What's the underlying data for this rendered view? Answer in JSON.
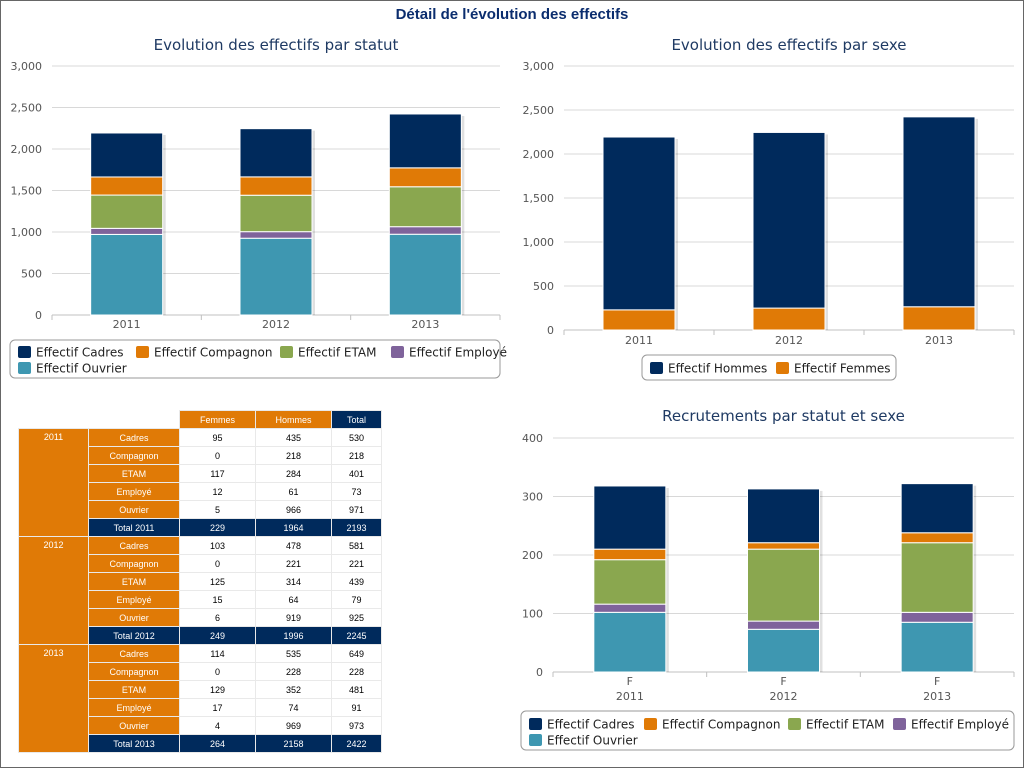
{
  "page": {
    "title": "Détail de l'évolution des effectifs"
  },
  "colors": {
    "Cadres": "#002a5c",
    "Compagnon": "#e07a06",
    "ETAM": "#8aa74f",
    "Employe": "#7f639b",
    "Ouvrier": "#3e97b1",
    "Hommes": "#002a5c",
    "Femmes": "#e07a06",
    "header_orange": "#e07a06",
    "header_navy": "#002a5c"
  },
  "chart_data": [
    {
      "id": "status",
      "type": "bar",
      "stacked": true,
      "title": "Evolution des effectifs par statut",
      "categories": [
        "2011",
        "2012",
        "2013"
      ],
      "ylim": [
        0,
        3000
      ],
      "yticks": [
        0,
        500,
        1000,
        1500,
        2000,
        2500,
        3000
      ],
      "ytick_labels": [
        "0",
        "500",
        "1,000",
        "1,500",
        "2,000",
        "2,500",
        "3,000"
      ],
      "grid": true,
      "legend": "bottom",
      "series": [
        {
          "name": "Effectif Cadres",
          "key": "Cadres",
          "values": [
            530,
            581,
            649
          ]
        },
        {
          "name": "Effectif Compagnon",
          "key": "Compagnon",
          "values": [
            218,
            221,
            228
          ]
        },
        {
          "name": "Effectif ETAM",
          "key": "ETAM",
          "values": [
            401,
            439,
            481
          ]
        },
        {
          "name": "Effectif Employé",
          "key": "Employe",
          "values": [
            73,
            79,
            91
          ]
        },
        {
          "name": "Effectif Ouvrier",
          "key": "Ouvrier",
          "values": [
            971,
            925,
            973
          ]
        }
      ]
    },
    {
      "id": "sex",
      "type": "bar",
      "stacked": true,
      "title": "Evolution des effectifs par sexe",
      "categories": [
        "2011",
        "2012",
        "2013"
      ],
      "ylim": [
        0,
        3000
      ],
      "yticks": [
        0,
        500,
        1000,
        1500,
        2000,
        2500,
        3000
      ],
      "ytick_labels": [
        "0",
        "500",
        "1,000",
        "1,500",
        "2,000",
        "2,500",
        "3,000"
      ],
      "grid": true,
      "legend": "bottom",
      "series": [
        {
          "name": "Effectif Hommes",
          "key": "Hommes",
          "values": [
            1964,
            1996,
            2158
          ]
        },
        {
          "name": "Effectif Femmes",
          "key": "Femmes",
          "values": [
            229,
            249,
            264
          ]
        }
      ]
    },
    {
      "id": "recruit",
      "type": "bar",
      "stacked": true,
      "title": "Recrutements par statut et sexe",
      "categories": [
        "2011",
        "2012",
        "2013"
      ],
      "subcategories": [
        "F",
        "F",
        "F"
      ],
      "ylim": [
        0,
        400
      ],
      "yticks": [
        0,
        100,
        200,
        300,
        400
      ],
      "ytick_labels": [
        "0",
        "100",
        "200",
        "300",
        "400"
      ],
      "grid": true,
      "legend": "bottom",
      "series": [
        {
          "name": "Effectif Cadres",
          "key": "Cadres",
          "values": [
            108,
            92,
            84
          ]
        },
        {
          "name": "Effectif Compagnon",
          "key": "Compagnon",
          "values": [
            18,
            11,
            17
          ]
        },
        {
          "name": "Effectif ETAM",
          "key": "ETAM",
          "values": [
            76,
            123,
            119
          ]
        },
        {
          "name": "Effectif Employé",
          "key": "Employe",
          "values": [
            14,
            14,
            17
          ]
        },
        {
          "name": "Effectif Ouvrier",
          "key": "Ouvrier",
          "values": [
            102,
            73,
            85
          ]
        }
      ]
    },
    {
      "id": "table",
      "type": "table",
      "columns": [
        "Femmes",
        "Hommes",
        "Total"
      ],
      "groups": [
        {
          "year": "2011",
          "rows": [
            {
              "label": "Cadres",
              "values": [
                "95",
                "435",
                "530"
              ]
            },
            {
              "label": "Compagnon",
              "values": [
                "0",
                "218",
                "218"
              ]
            },
            {
              "label": "ETAM",
              "values": [
                "117",
                "284",
                "401"
              ]
            },
            {
              "label": "Employé",
              "values": [
                "12",
                "61",
                "73"
              ]
            },
            {
              "label": "Ouvrier",
              "values": [
                "5",
                "966",
                "971"
              ]
            }
          ],
          "total": {
            "label": "Total 2011",
            "values": [
              "229",
              "1964",
              "2193"
            ]
          }
        },
        {
          "year": "2012",
          "rows": [
            {
              "label": "Cadres",
              "values": [
                "103",
                "478",
                "581"
              ]
            },
            {
              "label": "Compagnon",
              "values": [
                "0",
                "221",
                "221"
              ]
            },
            {
              "label": "ETAM",
              "values": [
                "125",
                "314",
                "439"
              ]
            },
            {
              "label": "Employé",
              "values": [
                "15",
                "64",
                "79"
              ]
            },
            {
              "label": "Ouvrier",
              "values": [
                "6",
                "919",
                "925"
              ]
            }
          ],
          "total": {
            "label": "Total 2012",
            "values": [
              "249",
              "1996",
              "2245"
            ]
          }
        },
        {
          "year": "2013",
          "rows": [
            {
              "label": "Cadres",
              "values": [
                "114",
                "535",
                "649"
              ]
            },
            {
              "label": "Compagnon",
              "values": [
                "0",
                "228",
                "228"
              ]
            },
            {
              "label": "ETAM",
              "values": [
                "129",
                "352",
                "481"
              ]
            },
            {
              "label": "Employé",
              "values": [
                "17",
                "74",
                "91"
              ]
            },
            {
              "label": "Ouvrier",
              "values": [
                "4",
                "969",
                "973"
              ]
            }
          ],
          "total": {
            "label": "Total 2013",
            "values": [
              "264",
              "2158",
              "2422"
            ]
          }
        }
      ]
    }
  ]
}
